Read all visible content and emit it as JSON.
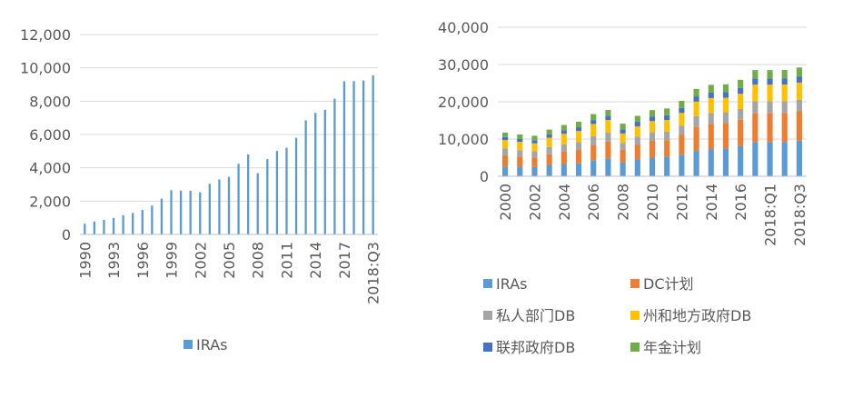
{
  "chart_data": [
    {
      "type": "bar",
      "title": "",
      "xlabel": "",
      "ylabel": "",
      "ylim": [
        0,
        12000
      ],
      "yticks": [
        "0",
        "2,000",
        "4,000",
        "6,000",
        "8,000",
        "10,000",
        "12,000"
      ],
      "x_tick_labels": [
        "1990",
        "1993",
        "1996",
        "1999",
        "2002",
        "2005",
        "2008",
        "2011",
        "2014",
        "2017",
        "2018:Q3"
      ],
      "grid": true,
      "legend_position": "bottom",
      "categories": [
        "1990",
        "1991",
        "1992",
        "1993",
        "1994",
        "1995",
        "1996",
        "1997",
        "1998",
        "1999",
        "2000",
        "2001",
        "2002",
        "2003",
        "2004",
        "2005",
        "2006",
        "2007",
        "2008",
        "2009",
        "2010",
        "2011",
        "2012",
        "2013",
        "2014",
        "2015",
        "2016",
        "2017",
        "2018:Q1",
        "2018:Q2",
        "2018:Q3"
      ],
      "series": [
        {
          "name": "IRAs",
          "color": "#5B9BD5",
          "values": [
            640,
            780,
            870,
            990,
            1150,
            1290,
            1470,
            1730,
            2150,
            2650,
            2630,
            2620,
            2530,
            3040,
            3300,
            3460,
            4240,
            4800,
            3680,
            4520,
            5010,
            5200,
            5800,
            6850,
            7300,
            7480,
            8150,
            9200,
            9200,
            9240,
            9550
          ]
        }
      ]
    },
    {
      "type": "bar",
      "stacked": true,
      "title": "",
      "xlabel": "",
      "ylabel": "",
      "ylim": [
        0,
        40000
      ],
      "yticks": [
        "0",
        "10,000",
        "20,000",
        "30,000",
        "40,000"
      ],
      "x_tick_labels": [
        "2000",
        "2002",
        "2004",
        "2006",
        "2008",
        "2010",
        "2012",
        "2014",
        "2016",
        "2018:Q1",
        "2018:Q3"
      ],
      "grid": true,
      "legend_position": "bottom",
      "categories": [
        "2000",
        "2001",
        "2002",
        "2003",
        "2004",
        "2005",
        "2006",
        "2007",
        "2008",
        "2009",
        "2010",
        "2011",
        "2012",
        "2013",
        "2014",
        "2015",
        "2016",
        "2017",
        "2018:Q1",
        "2018:Q2",
        "2018:Q3"
      ],
      "series": [
        {
          "name": "IRAs",
          "color": "#5B9BD5",
          "values": [
            2630,
            2620,
            2530,
            3040,
            3300,
            3460,
            4240,
            4800,
            3680,
            4520,
            5010,
            5200,
            5800,
            6850,
            7300,
            7480,
            8150,
            9200,
            9200,
            9240,
            9550
          ]
        },
        {
          "name": "DC计划",
          "color": "#ED7D31",
          "values": [
            3000,
            2700,
            2500,
            2900,
            3300,
            3600,
            4200,
            4500,
            3400,
            4000,
            4500,
            4500,
            5300,
            6400,
            6800,
            6800,
            7000,
            7800,
            7800,
            7800,
            7900
          ]
        },
        {
          "name": "私人部门DB",
          "color": "#A5A5A5",
          "values": [
            1800,
            1700,
            1700,
            1900,
            2000,
            2100,
            2300,
            2400,
            1900,
            2100,
            2300,
            2300,
            2500,
            2900,
            2900,
            2900,
            2900,
            3100,
            3100,
            3100,
            3100
          ]
        },
        {
          "name": "州和地方政府DB",
          "color": "#FFC000",
          "values": [
            2300,
            2200,
            2100,
            2500,
            2800,
            3000,
            3300,
            3400,
            2500,
            2800,
            3000,
            3100,
            3400,
            3900,
            4000,
            3900,
            4100,
            4500,
            4500,
            4500,
            4600
          ]
        },
        {
          "name": "联邦政府DB",
          "color": "#4472C4",
          "values": [
            800,
            800,
            850,
            900,
            950,
            1000,
            1050,
            1100,
            1150,
            1200,
            1250,
            1300,
            1350,
            1400,
            1450,
            1500,
            1550,
            1600,
            1600,
            1600,
            1650
          ]
        },
        {
          "name": "年金计划",
          "color": "#70AD47",
          "values": [
            1200,
            1200,
            1200,
            1300,
            1400,
            1500,
            1600,
            1600,
            1500,
            1600,
            1700,
            1800,
            1900,
            2000,
            2100,
            2100,
            2200,
            2300,
            2300,
            2300,
            2400
          ]
        }
      ]
    }
  ]
}
